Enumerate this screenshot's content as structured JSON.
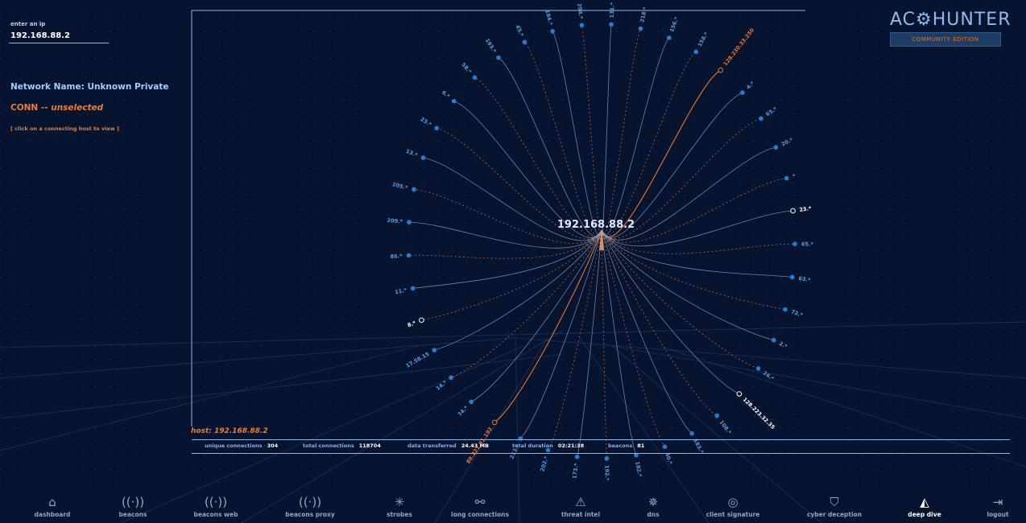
{
  "sidebar": {
    "ip_label": "enter an ip",
    "ip_value": "192.168.88.2",
    "network_name": "Network Name: Unknown Private",
    "conn_prefix": "CONN -- ",
    "conn_state": "unselected",
    "conn_hint": "[ click on a connecting host to view ]"
  },
  "logo": {
    "text": "AC⚙HUNTER",
    "edition": "COMMUNITY EDITION"
  },
  "graph": {
    "center_label": "192.168.88.2",
    "center_color": "#f0a070",
    "line_color": "#8fa7c6",
    "highlight_color": "#e8772d",
    "node_color": "#1e7fd6",
    "nodes": [
      {
        "label": "128.230.33.250",
        "type": "orange"
      },
      {
        "label": "158.*",
        "type": "blue"
      },
      {
        "label": "156.*",
        "type": "blue"
      },
      {
        "label": "218.*",
        "type": "blue"
      },
      {
        "label": "131.*",
        "type": "blue"
      },
      {
        "label": "204.*",
        "type": "blue"
      },
      {
        "label": "184.*",
        "type": "blue"
      },
      {
        "label": "45.*",
        "type": "blue"
      },
      {
        "label": "193.*",
        "type": "blue"
      },
      {
        "label": "58.*",
        "type": "blue"
      },
      {
        "label": "6.*",
        "type": "blue"
      },
      {
        "label": "23.*",
        "type": "blue"
      },
      {
        "label": "13.*",
        "type": "blue"
      },
      {
        "label": "205.*",
        "type": "blue"
      },
      {
        "label": "209.*",
        "type": "blue"
      },
      {
        "label": "86.*",
        "type": "blue"
      },
      {
        "label": "11.*",
        "type": "blue"
      },
      {
        "label": "8.*",
        "type": "white"
      },
      {
        "label": "17.58.15",
        "type": "blue"
      },
      {
        "label": "14.*",
        "type": "blue"
      },
      {
        "label": "74.*",
        "type": "blue"
      },
      {
        "label": "88.221.81.192",
        "type": "orange"
      },
      {
        "label": "213.*",
        "type": "blue"
      },
      {
        "label": "202.*",
        "type": "blue"
      },
      {
        "label": "173.*",
        "type": "blue"
      },
      {
        "label": "192.*",
        "type": "blue"
      },
      {
        "label": "182.*",
        "type": "blue"
      },
      {
        "label": "40.*",
        "type": "blue"
      },
      {
        "label": "183.*",
        "type": "blue"
      },
      {
        "label": "108.*",
        "type": "blue"
      },
      {
        "label": "128.223.32.35",
        "type": "white"
      },
      {
        "label": "24.*",
        "type": "blue"
      },
      {
        "label": "2.*",
        "type": "blue"
      },
      {
        "label": "72.*",
        "type": "blue"
      },
      {
        "label": "63.*",
        "type": "blue"
      },
      {
        "label": "65.*",
        "type": "blue"
      },
      {
        "label": "23.*",
        "type": "white"
      },
      {
        "label": "*",
        "type": "blue"
      },
      {
        "label": "20.*",
        "type": "blue"
      },
      {
        "label": "65.*",
        "type": "blue"
      },
      {
        "label": "4.*",
        "type": "blue"
      }
    ]
  },
  "host": {
    "title": "host: 192.168.88.2"
  },
  "stats": [
    {
      "label": "unique connections",
      "value": "304"
    },
    {
      "label": "total connections",
      "value": "118704"
    },
    {
      "label": "data transferred",
      "value": "24.43 MB"
    },
    {
      "label": "total duration",
      "value": "02:21:38"
    },
    {
      "label": "beacons",
      "value": "81"
    }
  ],
  "nav": [
    {
      "label": "dashboard",
      "icon": "home-icon",
      "glyph": "⌂",
      "active": false
    },
    {
      "label": "beacons",
      "icon": "beacon-icon",
      "glyph": "((·))",
      "active": false
    },
    {
      "label": "beacons web",
      "icon": "beacon-web-icon",
      "glyph": "((·))",
      "active": false
    },
    {
      "label": "beacons proxy",
      "icon": "beacon-proxy-icon",
      "glyph": "((·))",
      "active": false
    },
    {
      "label": "strobes",
      "icon": "strobe-icon",
      "glyph": "✳",
      "active": false
    },
    {
      "label": "long connections",
      "icon": "long-connections-icon",
      "glyph": "⚯",
      "active": false
    },
    {
      "label": "threat intel",
      "icon": "warning-icon",
      "glyph": "⚠",
      "active": false
    },
    {
      "label": "dns",
      "icon": "dns-icon",
      "glyph": "✵",
      "active": false
    },
    {
      "label": "client signature",
      "icon": "fingerprint-icon",
      "glyph": "◎",
      "active": false
    },
    {
      "label": "cyber deception",
      "icon": "shield-icon",
      "glyph": "⛉",
      "active": false
    },
    {
      "label": "deep dive",
      "icon": "shark-fin-icon",
      "glyph": "◭",
      "active": true
    },
    {
      "label": "logout",
      "icon": "logout-icon",
      "glyph": "⇥",
      "active": false
    }
  ]
}
